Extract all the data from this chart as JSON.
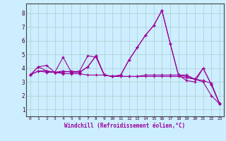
{
  "xlabel": "Windchill (Refroidissement éolien,°C)",
  "bg_color": "#cceeff",
  "line_color": "#990099",
  "grid_color": "#aacccc",
  "xlim": [
    -0.5,
    23.5
  ],
  "ylim": [
    0.5,
    8.7
  ],
  "xticks": [
    0,
    1,
    2,
    3,
    4,
    5,
    6,
    7,
    8,
    9,
    10,
    11,
    12,
    13,
    14,
    15,
    16,
    17,
    18,
    19,
    20,
    21,
    22,
    23
  ],
  "yticks": [
    1,
    2,
    3,
    4,
    5,
    6,
    7,
    8
  ],
  "lines": [
    [
      3.5,
      4.1,
      3.8,
      3.7,
      4.8,
      3.7,
      3.8,
      4.9,
      4.8,
      3.5,
      3.4,
      3.5,
      4.6,
      5.5,
      6.4,
      7.1,
      8.2,
      5.8,
      3.5,
      3.5,
      3.2,
      4.0,
      2.8,
      1.4
    ],
    [
      3.5,
      4.1,
      4.2,
      3.7,
      3.6,
      3.6,
      3.6,
      3.5,
      3.5,
      3.5,
      3.4,
      3.4,
      3.4,
      3.4,
      3.4,
      3.4,
      3.4,
      3.4,
      3.4,
      3.3,
      3.2,
      3.1,
      2.9,
      1.4
    ],
    [
      3.5,
      3.8,
      3.8,
      3.7,
      3.7,
      3.8,
      3.7,
      4.1,
      4.9,
      3.5,
      3.4,
      3.4,
      3.4,
      3.4,
      3.5,
      3.5,
      3.5,
      3.5,
      3.5,
      3.4,
      3.2,
      3.0,
      2.0,
      1.4
    ],
    [
      3.5,
      3.8,
      3.7,
      3.7,
      3.8,
      3.7,
      3.7,
      4.1,
      4.9,
      3.5,
      3.4,
      3.5,
      4.6,
      5.5,
      6.4,
      7.1,
      8.2,
      5.8,
      3.5,
      3.1,
      3.0,
      4.0,
      2.8,
      1.4
    ]
  ]
}
